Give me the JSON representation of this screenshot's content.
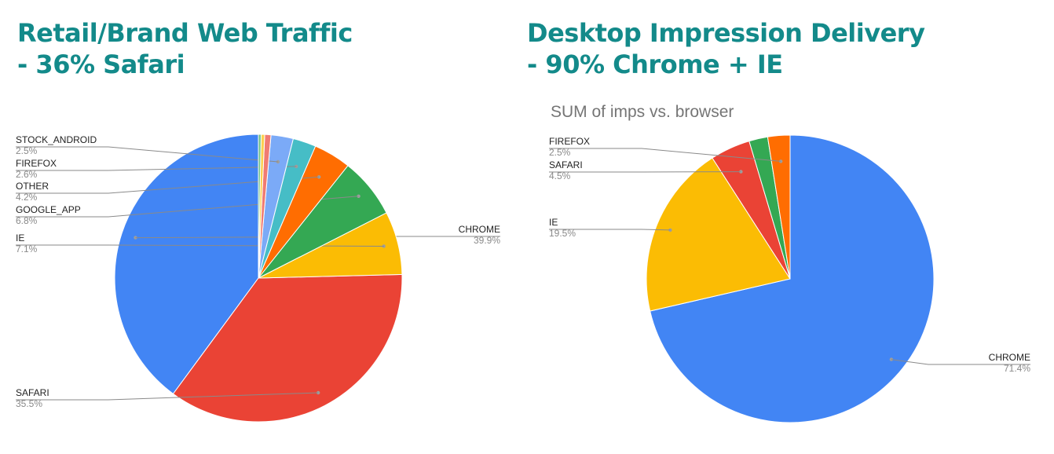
{
  "titles": {
    "left": {
      "line1": "Retail/Brand Web Traffic",
      "line2": "- 36% Safari"
    },
    "right": {
      "line1": "Desktop Impression Delivery",
      "line2": "- 90% Chrome + IE"
    }
  },
  "colors": {
    "title": "#138a8a",
    "chrome": "#4285f4",
    "safari": "#ea4335",
    "ie": "#fbbc04",
    "google_app": "#34a853",
    "other": "#ff6d01",
    "firefox": "#46bdc6",
    "stock_android": "#7baaf7",
    "minor_1": "#f07b72",
    "minor_2": "#fcd04f",
    "minor_3": "#71c287"
  },
  "chart_data": [
    {
      "type": "pie",
      "title": "",
      "slices": [
        {
          "label": "CHROME",
          "pct_label": "39.9%",
          "value": 39.9,
          "color": "#4285f4"
        },
        {
          "label": "SAFARI",
          "pct_label": "35.5%",
          "value": 35.5,
          "color": "#ea4335"
        },
        {
          "label": "IE",
          "pct_label": "7.1%",
          "value": 7.1,
          "color": "#fbbc04"
        },
        {
          "label": "GOOGLE_APP",
          "pct_label": "6.8%",
          "value": 6.8,
          "color": "#34a853"
        },
        {
          "label": "OTHER",
          "pct_label": "4.2%",
          "value": 4.2,
          "color": "#ff6d01"
        },
        {
          "label": "FIREFOX",
          "pct_label": "2.6%",
          "value": 2.6,
          "color": "#46bdc6"
        },
        {
          "label": "STOCK_ANDROID",
          "pct_label": "2.5%",
          "value": 2.5,
          "color": "#7baaf7"
        },
        {
          "label": "",
          "pct_label": "",
          "value": 0.7,
          "color": "#f07b72"
        },
        {
          "label": "",
          "pct_label": "",
          "value": 0.4,
          "color": "#fcd04f"
        },
        {
          "label": "",
          "pct_label": "",
          "value": 0.3,
          "color": "#71c287"
        }
      ]
    },
    {
      "type": "pie",
      "title": "SUM of imps vs. browser",
      "slices": [
        {
          "label": "CHROME",
          "pct_label": "71.4%",
          "value": 71.4,
          "color": "#4285f4"
        },
        {
          "label": "IE",
          "pct_label": "19.5%",
          "value": 19.5,
          "color": "#fbbc04"
        },
        {
          "label": "SAFARI",
          "pct_label": "4.5%",
          "value": 4.5,
          "color": "#ea4335"
        },
        {
          "label": "",
          "pct_label": "",
          "value": 2.1,
          "color": "#34a853"
        },
        {
          "label": "FIREFOX",
          "pct_label": "2.5%",
          "value": 2.5,
          "color": "#ff6d01"
        }
      ]
    }
  ]
}
